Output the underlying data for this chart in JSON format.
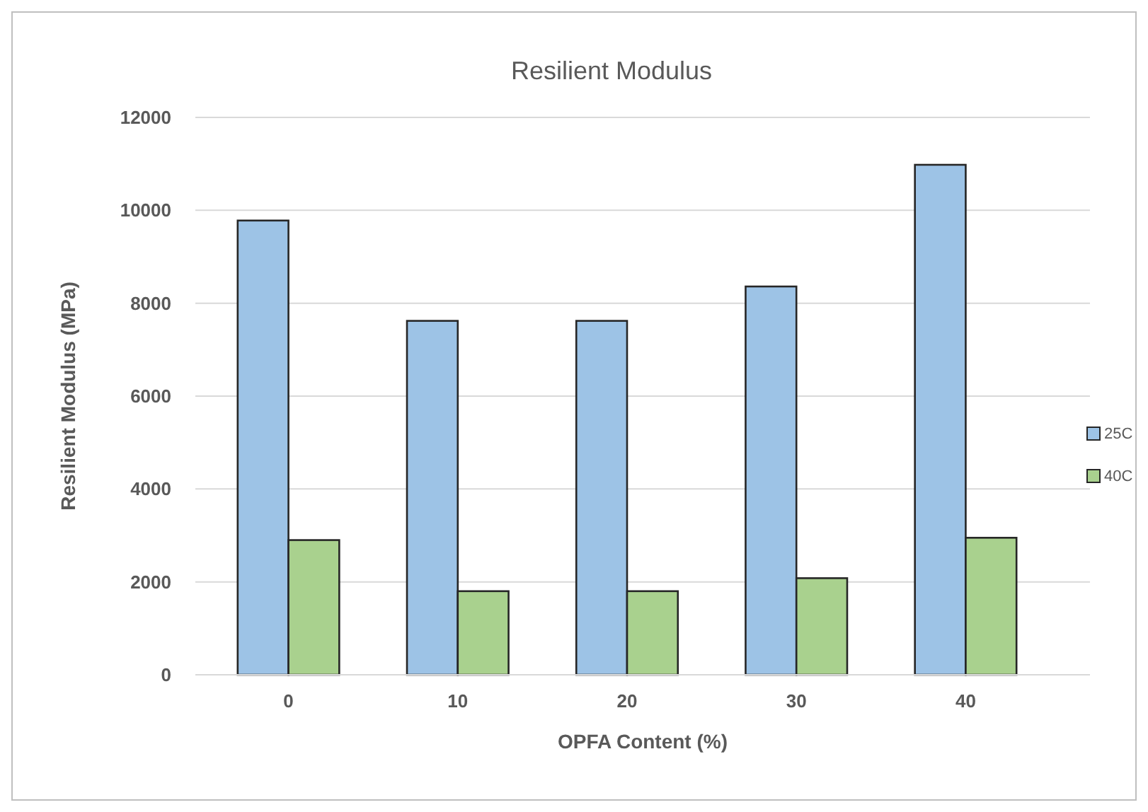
{
  "chart_data": {
    "type": "bar",
    "title": "Resilient Modulus",
    "xlabel": "OPFA Content (%)",
    "ylabel": "Resilient Modulus (MPa)",
    "categories": [
      "0",
      "10",
      "20",
      "30",
      "40"
    ],
    "series": [
      {
        "name": "25C",
        "color": "#9dc3e6",
        "values": [
          9780,
          7620,
          7620,
          8360,
          10980
        ]
      },
      {
        "name": "40C",
        "color": "#a9d18e",
        "values": [
          2900,
          1800,
          1800,
          2080,
          2950
        ]
      }
    ],
    "ylim": [
      0,
      12000
    ],
    "yticks": [
      0,
      2000,
      4000,
      6000,
      8000,
      10000,
      12000
    ],
    "grid": "y",
    "legend": "right"
  }
}
